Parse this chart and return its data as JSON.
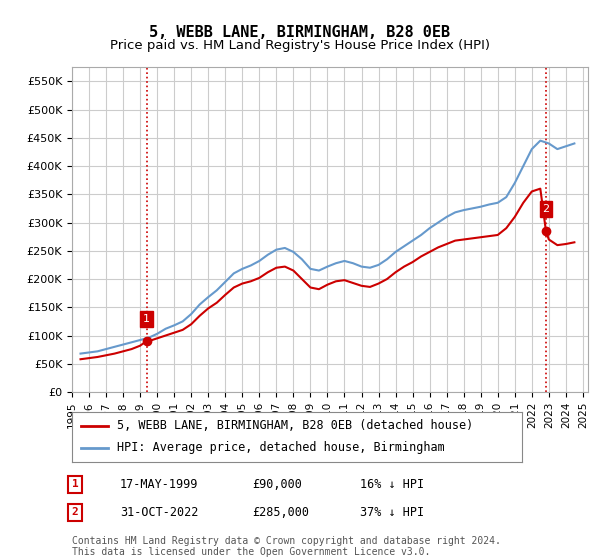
{
  "title": "5, WEBB LANE, BIRMINGHAM, B28 0EB",
  "subtitle": "Price paid vs. HM Land Registry's House Price Index (HPI)",
  "ylabel": "",
  "ylim": [
    0,
    575000
  ],
  "yticks": [
    0,
    50000,
    100000,
    150000,
    200000,
    250000,
    300000,
    350000,
    400000,
    450000,
    500000,
    550000
  ],
  "ytick_labels": [
    "£0",
    "£50K",
    "£100K",
    "£150K",
    "£200K",
    "£250K",
    "£300K",
    "£350K",
    "£400K",
    "£450K",
    "£500K",
    "£550K"
  ],
  "sale1_date_num": 1999.38,
  "sale1_price": 90000,
  "sale1_label": "1",
  "sale1_date_str": "17-MAY-1999",
  "sale1_price_str": "£90,000",
  "sale1_note": "16% ↓ HPI",
  "sale2_date_num": 2022.83,
  "sale2_price": 285000,
  "sale2_label": "2",
  "sale2_date_str": "31-OCT-2022",
  "sale2_price_str": "£285,000",
  "sale2_note": "37% ↓ HPI",
  "line1_color": "#cc0000",
  "line2_color": "#6699cc",
  "sale_marker_color": "#cc0000",
  "vline_color": "#cc0000",
  "grid_color": "#cccccc",
  "bg_color": "#ffffff",
  "title_fontsize": 11,
  "subtitle_fontsize": 9.5,
  "tick_fontsize": 8,
  "legend_fontsize": 8.5,
  "footer_fontsize": 7,
  "table_fontsize": 8.5,
  "hpi_data_x": [
    1995.5,
    1996.0,
    1996.5,
    1997.0,
    1997.5,
    1998.0,
    1998.5,
    1999.0,
    1999.5,
    2000.0,
    2000.5,
    2001.0,
    2001.5,
    2002.0,
    2002.5,
    2003.0,
    2003.5,
    2004.0,
    2004.5,
    2005.0,
    2005.5,
    2006.0,
    2006.5,
    2007.0,
    2007.5,
    2008.0,
    2008.5,
    2009.0,
    2009.5,
    2010.0,
    2010.5,
    2011.0,
    2011.5,
    2012.0,
    2012.5,
    2013.0,
    2013.5,
    2014.0,
    2014.5,
    2015.0,
    2015.5,
    2016.0,
    2016.5,
    2017.0,
    2017.5,
    2018.0,
    2018.5,
    2019.0,
    2019.5,
    2020.0,
    2020.5,
    2021.0,
    2021.5,
    2022.0,
    2022.5,
    2023.0,
    2023.5,
    2024.0,
    2024.5
  ],
  "hpi_data_y": [
    68000,
    70000,
    72000,
    76000,
    80000,
    84000,
    88000,
    92000,
    96000,
    103000,
    112000,
    118000,
    125000,
    138000,
    155000,
    168000,
    180000,
    195000,
    210000,
    218000,
    224000,
    232000,
    243000,
    252000,
    255000,
    248000,
    235000,
    218000,
    215000,
    222000,
    228000,
    232000,
    228000,
    222000,
    220000,
    225000,
    235000,
    248000,
    258000,
    268000,
    278000,
    290000,
    300000,
    310000,
    318000,
    322000,
    325000,
    328000,
    332000,
    335000,
    345000,
    370000,
    400000,
    430000,
    445000,
    440000,
    430000,
    435000,
    440000
  ],
  "property_data_x": [
    1995.5,
    1996.0,
    1996.5,
    1997.0,
    1997.5,
    1998.0,
    1998.5,
    1999.0,
    1999.38,
    1999.5,
    2000.0,
    2000.5,
    2001.0,
    2001.5,
    2002.0,
    2002.5,
    2003.0,
    2003.5,
    2004.0,
    2004.5,
    2005.0,
    2005.5,
    2006.0,
    2006.5,
    2007.0,
    2007.5,
    2008.0,
    2008.5,
    2009.0,
    2009.5,
    2010.0,
    2010.5,
    2011.0,
    2011.5,
    2012.0,
    2012.5,
    2013.0,
    2013.5,
    2014.0,
    2014.5,
    2015.0,
    2015.5,
    2016.0,
    2016.5,
    2017.0,
    2017.5,
    2018.0,
    2018.5,
    2019.0,
    2019.5,
    2020.0,
    2020.5,
    2021.0,
    2021.5,
    2022.0,
    2022.5,
    2022.83,
    2023.0,
    2023.5,
    2024.0,
    2024.5
  ],
  "property_data_y": [
    58000,
    60000,
    62000,
    65000,
    68000,
    72000,
    76000,
    82000,
    90000,
    90000,
    95000,
    100000,
    105000,
    110000,
    120000,
    135000,
    148000,
    158000,
    172000,
    185000,
    192000,
    196000,
    202000,
    212000,
    220000,
    222000,
    215000,
    200000,
    185000,
    182000,
    190000,
    196000,
    198000,
    193000,
    188000,
    186000,
    192000,
    200000,
    212000,
    222000,
    230000,
    240000,
    248000,
    256000,
    262000,
    268000,
    270000,
    272000,
    274000,
    276000,
    278000,
    290000,
    310000,
    335000,
    355000,
    360000,
    285000,
    270000,
    260000,
    262000,
    265000
  ],
  "footer_line1": "Contains HM Land Registry data © Crown copyright and database right 2024.",
  "footer_line2": "This data is licensed under the Open Government Licence v3.0."
}
